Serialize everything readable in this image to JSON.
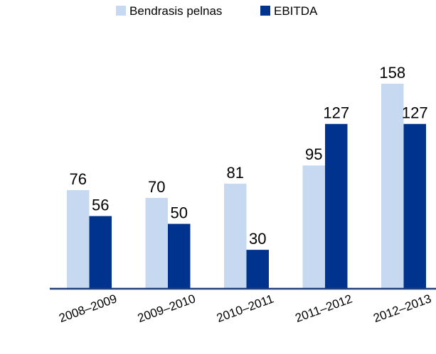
{
  "chart_data": {
    "type": "bar",
    "categories": [
      "2008–2009",
      "2009–2010",
      "2010–2011",
      "2011–2012",
      "2012–2013"
    ],
    "series": [
      {
        "name": "Bendrasis pelnas",
        "color": "#c6d9f1",
        "values": [
          76,
          70,
          81,
          95,
          158
        ]
      },
      {
        "name": "EBITDA",
        "color": "#00338d",
        "values": [
          56,
          50,
          30,
          127,
          127
        ]
      }
    ],
    "legend": "top"
  }
}
